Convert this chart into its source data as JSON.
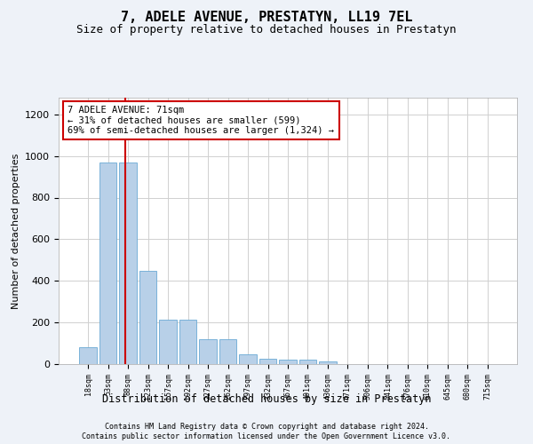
{
  "title": "7, ADELE AVENUE, PRESTATYN, LL19 7EL",
  "subtitle": "Size of property relative to detached houses in Prestatyn",
  "xlabel": "Distribution of detached houses by size in Prestatyn",
  "ylabel": "Number of detached properties",
  "categories": [
    "18sqm",
    "53sqm",
    "88sqm",
    "123sqm",
    "157sqm",
    "192sqm",
    "227sqm",
    "262sqm",
    "297sqm",
    "332sqm",
    "367sqm",
    "401sqm",
    "436sqm",
    "471sqm",
    "506sqm",
    "541sqm",
    "576sqm",
    "610sqm",
    "645sqm",
    "680sqm",
    "715sqm"
  ],
  "values": [
    80,
    970,
    970,
    450,
    215,
    215,
    120,
    120,
    45,
    25,
    22,
    22,
    12,
    0,
    0,
    0,
    0,
    0,
    0,
    0,
    0
  ],
  "bar_color": "#b8d0e8",
  "bar_edgecolor": "#6aaad4",
  "property_line_x": 1.85,
  "annotation_text": "7 ADELE AVENUE: 71sqm\n← 31% of detached houses are smaller (599)\n69% of semi-detached houses are larger (1,324) →",
  "annotation_box_color": "#ffffff",
  "annotation_box_edgecolor": "#cc0000",
  "redline_color": "#cc0000",
  "ylim": [
    0,
    1280
  ],
  "yticks": [
    0,
    200,
    400,
    600,
    800,
    1000,
    1200
  ],
  "footer_line1": "Contains HM Land Registry data © Crown copyright and database right 2024.",
  "footer_line2": "Contains public sector information licensed under the Open Government Licence v3.0.",
  "bg_color": "#eef2f8",
  "plot_bg_color": "#ffffff",
  "grid_color": "#d0d0d0",
  "title_fontsize": 11,
  "subtitle_fontsize": 9
}
